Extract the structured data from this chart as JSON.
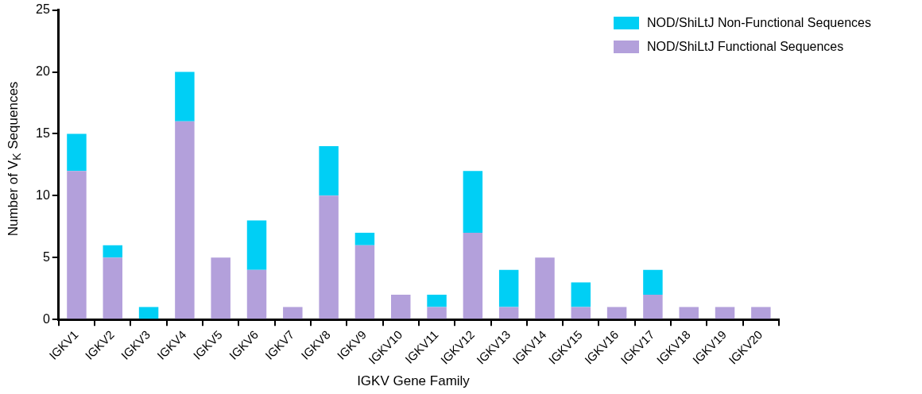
{
  "chart_data": {
    "type": "bar",
    "stacked": true,
    "xlabel": "IGKV Gene Family",
    "ylabel": "Number of V$_{K}$ Sequences",
    "categories": [
      "IGKV1",
      "IGKV2",
      "IGKV3",
      "IGKV4",
      "IGKV5",
      "IGKV6",
      "IGKV7",
      "IGKV8",
      "IGKV9",
      "IGKV10",
      "IGKV11",
      "IGKV12",
      "IGKV13",
      "IGKV14",
      "IGKV15",
      "IGKV16",
      "IGKV17",
      "IGKV18",
      "IGKV19",
      "IGKV20"
    ],
    "series": [
      {
        "name": "NOD/ShiLtJ Functional Sequences",
        "color": "#b3a0db",
        "values": [
          12,
          5,
          0,
          16,
          5,
          4,
          1,
          10,
          6,
          2,
          1,
          7,
          1,
          5,
          1,
          1,
          2,
          1,
          1,
          1
        ]
      },
      {
        "name": "NOD/ShiLtJ Non-Functional Sequences",
        "color": "#00cff5",
        "values": [
          3,
          1,
          1,
          4,
          0,
          4,
          0,
          4,
          1,
          0,
          1,
          5,
          3,
          0,
          2,
          0,
          2,
          0,
          0,
          0
        ]
      }
    ],
    "ylim": [
      0,
      25
    ],
    "yticks": [
      0,
      5,
      10,
      15,
      20,
      25
    ],
    "grid": false,
    "legend": "top right"
  }
}
